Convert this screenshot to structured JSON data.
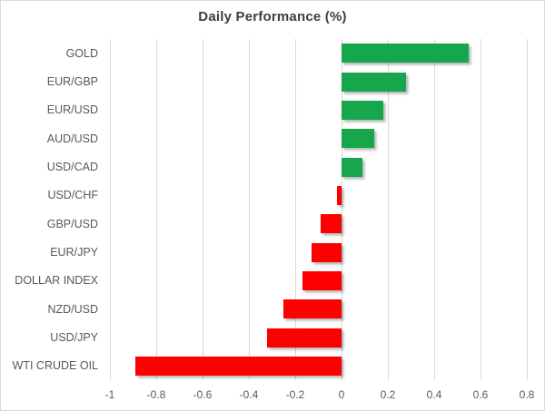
{
  "chart_data": {
    "type": "bar",
    "orientation": "horizontal",
    "title": "Daily Performance (%)",
    "categories": [
      "GOLD",
      "EUR/GBP",
      "EUR/USD",
      "AUD/USD",
      "USD/CAD",
      "USD/CHF",
      "GBP/USD",
      "EUR/JPY",
      "DOLLAR INDEX",
      "NZD/USD",
      "USD/JPY",
      "WTI CRUDE OIL"
    ],
    "values": [
      0.55,
      0.28,
      0.18,
      0.14,
      0.09,
      -0.02,
      -0.09,
      -0.13,
      -0.17,
      -0.25,
      -0.32,
      -0.89
    ],
    "xlabel": "",
    "ylabel": "",
    "xlim": [
      -1.0,
      0.8
    ],
    "xticks": [
      -1.0,
      -0.8,
      -0.6,
      -0.4,
      -0.2,
      0,
      0.2,
      0.4,
      0.6,
      0.8
    ],
    "xtick_labels": [
      "-1",
      "-0.8",
      "-0.6",
      "-0.4",
      "-0.2",
      "0",
      "0.2",
      "0.4",
      "0.6",
      "0.8"
    ],
    "grid": "vertical-gridlines-on",
    "legend": "none",
    "colors": {
      "positive_bar": "#16a64c",
      "negative_bar": "#ff0000",
      "gridline": "#d9d9d9",
      "axis_text": "#595959",
      "title_text": "#3f3f3f",
      "background": "#ffffff",
      "chart_border": "#d9d9d9"
    }
  }
}
